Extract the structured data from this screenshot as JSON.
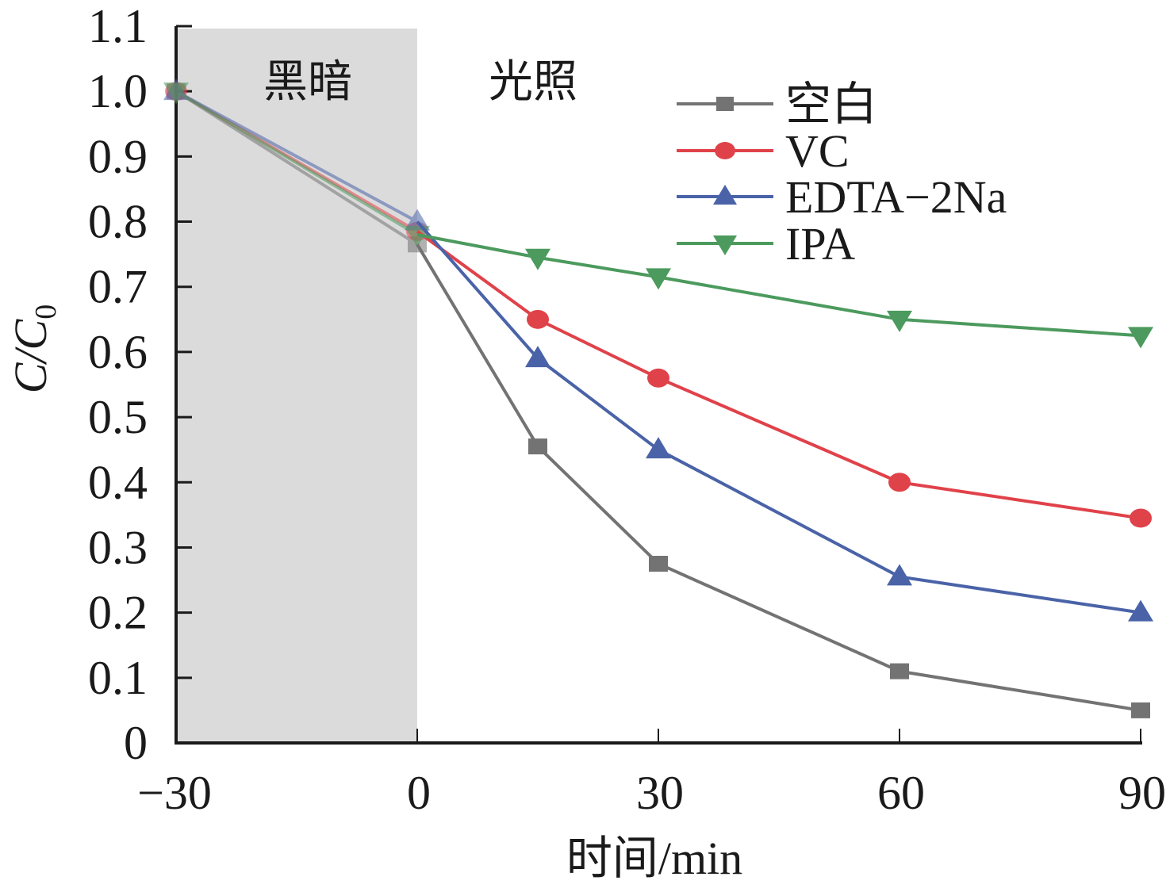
{
  "chart_data": {
    "type": "line",
    "title": "",
    "xlabel": "时间/min",
    "ylabel": "C/C0",
    "ylabel_main": "C/C",
    "ylabel_sub": "0",
    "xlim": [
      -30,
      90
    ],
    "ylim": [
      0,
      1.1
    ],
    "xticks": [
      -30,
      0,
      30,
      60,
      90
    ],
    "xtick_labels": [
      "−30",
      "0",
      "30",
      "60",
      "90"
    ],
    "yticks": [
      0,
      0.1,
      0.2,
      0.3,
      0.4,
      0.5,
      0.6,
      0.7,
      0.8,
      0.9,
      1.0,
      1.1
    ],
    "ytick_labels": [
      "0",
      "0.1",
      "0.2",
      "0.3",
      "0.4",
      "0.5",
      "0.6",
      "0.7",
      "0.8",
      "0.9",
      "1.0",
      "1.1"
    ],
    "grid": false,
    "legend_position": "top-right",
    "regions": [
      {
        "label": "黑暗",
        "x_start": -30,
        "x_end": 0,
        "shaded": true,
        "color": "#dcdbdc"
      },
      {
        "label": "光照",
        "x_start": 0,
        "x_end": 90,
        "shaded": false
      }
    ],
    "x": [
      -30,
      0,
      15,
      30,
      60,
      90
    ],
    "series": [
      {
        "name": "空白",
        "marker": "square",
        "color": "#737373",
        "values": [
          1.0,
          0.765,
          0.455,
          0.275,
          0.11,
          0.05
        ]
      },
      {
        "name": "VC",
        "marker": "circle",
        "color": "#e0424a",
        "values": [
          1.0,
          0.785,
          0.65,
          0.56,
          0.4,
          0.345
        ]
      },
      {
        "name": "EDTA−2Na",
        "marker": "triangle-up",
        "color": "#4a63a8",
        "values": [
          1.0,
          0.8,
          0.59,
          0.45,
          0.255,
          0.2
        ]
      },
      {
        "name": "IPA",
        "marker": "triangle-down",
        "color": "#4c9a5e",
        "values": [
          1.0,
          0.78,
          0.745,
          0.715,
          0.65,
          0.625
        ]
      }
    ]
  }
}
